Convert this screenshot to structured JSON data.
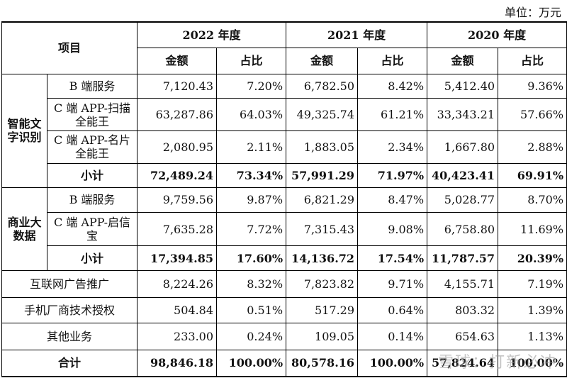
{
  "unit_label": "单位：万元",
  "header": {
    "item": "项目",
    "years": [
      "2022 年度",
      "2021 年度",
      "2020 年度"
    ],
    "amount": "金额",
    "ratio": "占比"
  },
  "rows": {
    "ai_group": "智能文字识别",
    "ai_b": {
      "label": "B 端服务",
      "v": [
        "7,120.43",
        "7.20%",
        "6,782.50",
        "8.42%",
        "5,412.40",
        "9.36%"
      ]
    },
    "ai_c1": {
      "label": "C 端 APP-扫描全能王",
      "v": [
        "63,287.86",
        "64.03%",
        "49,325.74",
        "61.21%",
        "33,343.21",
        "57.66%"
      ]
    },
    "ai_c2": {
      "label": "C 端 APP-名片全能王",
      "v": [
        "2,080.95",
        "2.11%",
        "1,883.05",
        "2.34%",
        "1,667.80",
        "2.88%"
      ]
    },
    "ai_sub": {
      "label": "小计",
      "v": [
        "72,489.24",
        "73.34%",
        "57,991.29",
        "71.97%",
        "40,423.41",
        "69.91%"
      ]
    },
    "bd_group": "商业大数据",
    "bd_b": {
      "label": "B 端服务",
      "v": [
        "9,759.56",
        "9.87%",
        "6,821.29",
        "8.47%",
        "5,028.77",
        "8.70%"
      ]
    },
    "bd_c": {
      "label": "C 端 APP-启信宝",
      "v": [
        "7,635.28",
        "7.72%",
        "7,315.43",
        "9.08%",
        "6,758.80",
        "11.69%"
      ]
    },
    "bd_sub": {
      "label": "小计",
      "v": [
        "17,394.85",
        "17.60%",
        "14,136.72",
        "17.54%",
        "11,787.57",
        "20.39%"
      ]
    },
    "ad": {
      "label": "互联网广告推广",
      "v": [
        "8,224.26",
        "8.32%",
        "7,823.82",
        "9.71%",
        "4,155.71",
        "7.19%"
      ]
    },
    "lic": {
      "label": "手机厂商技术授权",
      "v": [
        "504.84",
        "0.51%",
        "517.29",
        "0.64%",
        "803.32",
        "1.39%"
      ]
    },
    "other": {
      "label": "其他业务",
      "v": [
        "233.00",
        "0.24%",
        "109.05",
        "0.14%",
        "654.63",
        "1.13%"
      ]
    },
    "total": {
      "label": "合计",
      "v": [
        "98,846.18",
        "100.00%",
        "80,578.16",
        "100.00%",
        "57,824.64",
        "100.00%"
      ]
    }
  },
  "watermark": "雪球：打新必冲"
}
